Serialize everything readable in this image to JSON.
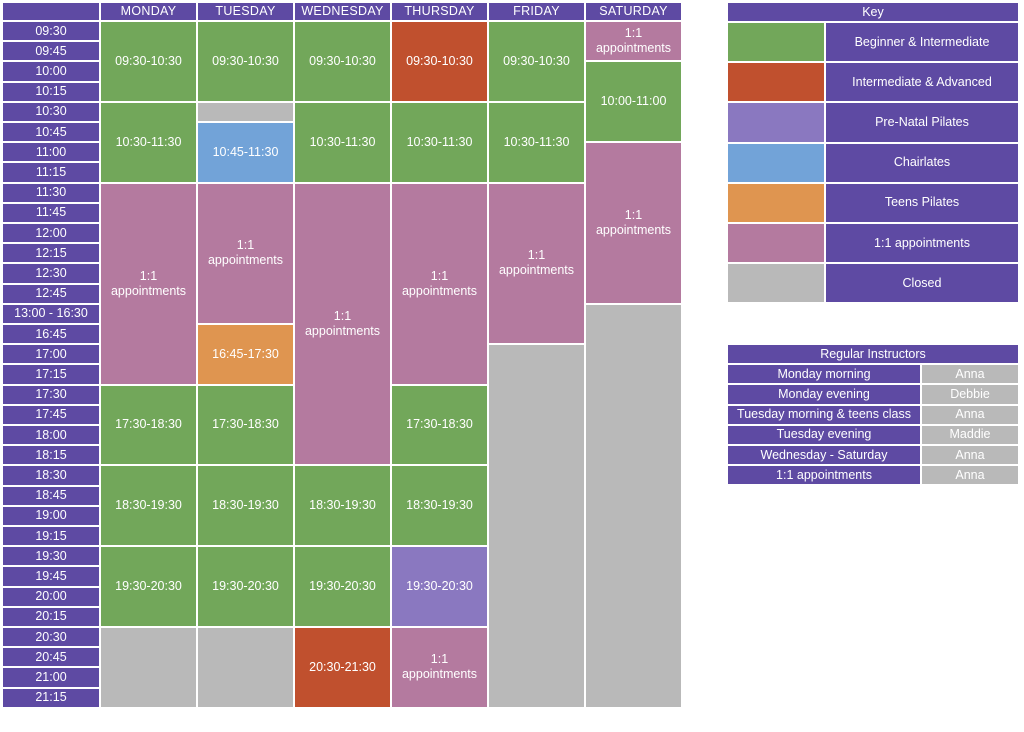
{
  "colors": {
    "header": "#5e4aa3",
    "beginner": "#72a75a",
    "advanced": "#c0502e",
    "prenatal": "#8a78c0",
    "chairlates": "#72a3d8",
    "teens": "#df9550",
    "appt": "#b47a9f",
    "closed": "#b9b9b9"
  },
  "days": [
    "MONDAY",
    "TUESDAY",
    "WEDNESDAY",
    "THURSDAY",
    "FRIDAY",
    "SATURDAY"
  ],
  "times": [
    "09:30",
    "09:45",
    "10:00",
    "10:15",
    "10:30",
    "10:45",
    "11:00",
    "11:15",
    "11:30",
    "11:45",
    "12:00",
    "12:15",
    "12:30",
    "12:45",
    "13:00 - 16:30",
    "16:45",
    "17:00",
    "17:15",
    "17:30",
    "17:45",
    "18:00",
    "18:15",
    "18:30",
    "18:45",
    "19:00",
    "19:15",
    "19:30",
    "19:45",
    "20:00",
    "20:15",
    "20:30",
    "20:45",
    "21:00",
    "21:15"
  ],
  "sessions": [
    {
      "day": 0,
      "start": 0,
      "end": 4,
      "type": "beginner",
      "label": "09:30-10:30"
    },
    {
      "day": 0,
      "start": 4,
      "end": 8,
      "type": "beginner",
      "label": "10:30-11:30"
    },
    {
      "day": 0,
      "start": 8,
      "end": 18,
      "type": "appt",
      "label": "1:1\nappointments"
    },
    {
      "day": 0,
      "start": 18,
      "end": 22,
      "type": "beginner",
      "label": "17:30-18:30"
    },
    {
      "day": 0,
      "start": 22,
      "end": 26,
      "type": "beginner",
      "label": "18:30-19:30"
    },
    {
      "day": 0,
      "start": 26,
      "end": 30,
      "type": "beginner",
      "label": "19:30-20:30"
    },
    {
      "day": 0,
      "start": 30,
      "end": 34,
      "type": "closed",
      "label": ""
    },
    {
      "day": 1,
      "start": 0,
      "end": 4,
      "type": "beginner",
      "label": "09:30-10:30"
    },
    {
      "day": 1,
      "start": 4,
      "end": 5,
      "type": "closed",
      "label": ""
    },
    {
      "day": 1,
      "start": 5,
      "end": 8,
      "type": "chairlates",
      "label": "10:45-11:30"
    },
    {
      "day": 1,
      "start": 8,
      "end": 15,
      "type": "appt",
      "label": "1:1\nappointments"
    },
    {
      "day": 1,
      "start": 15,
      "end": 18,
      "type": "teens",
      "label": "16:45-17:30"
    },
    {
      "day": 1,
      "start": 18,
      "end": 22,
      "type": "beginner",
      "label": "17:30-18:30"
    },
    {
      "day": 1,
      "start": 22,
      "end": 26,
      "type": "beginner",
      "label": "18:30-19:30"
    },
    {
      "day": 1,
      "start": 26,
      "end": 30,
      "type": "beginner",
      "label": "19:30-20:30"
    },
    {
      "day": 1,
      "start": 30,
      "end": 34,
      "type": "closed",
      "label": ""
    },
    {
      "day": 2,
      "start": 0,
      "end": 4,
      "type": "beginner",
      "label": "09:30-10:30"
    },
    {
      "day": 2,
      "start": 4,
      "end": 8,
      "type": "beginner",
      "label": "10:30-11:30"
    },
    {
      "day": 2,
      "start": 8,
      "end": 22,
      "type": "appt",
      "label": "1:1\nappointments"
    },
    {
      "day": 2,
      "start": 22,
      "end": 26,
      "type": "beginner",
      "label": "18:30-19:30"
    },
    {
      "day": 2,
      "start": 26,
      "end": 30,
      "type": "beginner",
      "label": "19:30-20:30"
    },
    {
      "day": 2,
      "start": 30,
      "end": 34,
      "type": "advanced",
      "label": "20:30-21:30"
    },
    {
      "day": 3,
      "start": 0,
      "end": 4,
      "type": "advanced",
      "label": "09:30-10:30"
    },
    {
      "day": 3,
      "start": 4,
      "end": 8,
      "type": "beginner",
      "label": "10:30-11:30"
    },
    {
      "day": 3,
      "start": 8,
      "end": 18,
      "type": "appt",
      "label": "1:1\nappointments"
    },
    {
      "day": 3,
      "start": 18,
      "end": 22,
      "type": "beginner",
      "label": "17:30-18:30"
    },
    {
      "day": 3,
      "start": 22,
      "end": 26,
      "type": "beginner",
      "label": "18:30-19:30"
    },
    {
      "day": 3,
      "start": 26,
      "end": 30,
      "type": "prenatal",
      "label": "19:30-20:30"
    },
    {
      "day": 3,
      "start": 30,
      "end": 34,
      "type": "appt",
      "label": "1:1\nappointments"
    },
    {
      "day": 4,
      "start": 0,
      "end": 4,
      "type": "beginner",
      "label": "09:30-10:30"
    },
    {
      "day": 4,
      "start": 4,
      "end": 8,
      "type": "beginner",
      "label": "10:30-11:30"
    },
    {
      "day": 4,
      "start": 8,
      "end": 16,
      "type": "appt",
      "label": "1:1\nappointments"
    },
    {
      "day": 4,
      "start": 16,
      "end": 34,
      "type": "closed",
      "label": ""
    },
    {
      "day": 5,
      "start": 0,
      "end": 2,
      "type": "appt",
      "label": "1:1\nappointments"
    },
    {
      "day": 5,
      "start": 2,
      "end": 6,
      "type": "beginner",
      "label": "10:00-11:00"
    },
    {
      "day": 5,
      "start": 6,
      "end": 14,
      "type": "appt",
      "label": "1:1\nappointments"
    },
    {
      "day": 5,
      "start": 14,
      "end": 34,
      "type": "closed",
      "label": ""
    }
  ],
  "key": {
    "title": "Key",
    "items": [
      {
        "type": "beginner",
        "label": "Beginner & Intermediate"
      },
      {
        "type": "advanced",
        "label": "Intermediate & Advanced"
      },
      {
        "type": "prenatal",
        "label": "Pre-Natal Pilates"
      },
      {
        "type": "chairlates",
        "label": "Chairlates"
      },
      {
        "type": "teens",
        "label": "Teens Pilates"
      },
      {
        "type": "appt",
        "label": "1:1 appointments"
      },
      {
        "type": "closed",
        "label": "Closed"
      }
    ]
  },
  "instructors": {
    "title": "Regular Instructors",
    "rows": [
      {
        "slot": "Monday morning",
        "name": "Anna"
      },
      {
        "slot": "Monday evening",
        "name": "Debbie"
      },
      {
        "slot": "Tuesday morning & teens class",
        "name": "Anna"
      },
      {
        "slot": "Tuesday evening",
        "name": "Maddie"
      },
      {
        "slot": "Wednesday - Saturday",
        "name": "Anna"
      },
      {
        "slot": "1:1 appointments",
        "name": "Anna"
      }
    ]
  }
}
